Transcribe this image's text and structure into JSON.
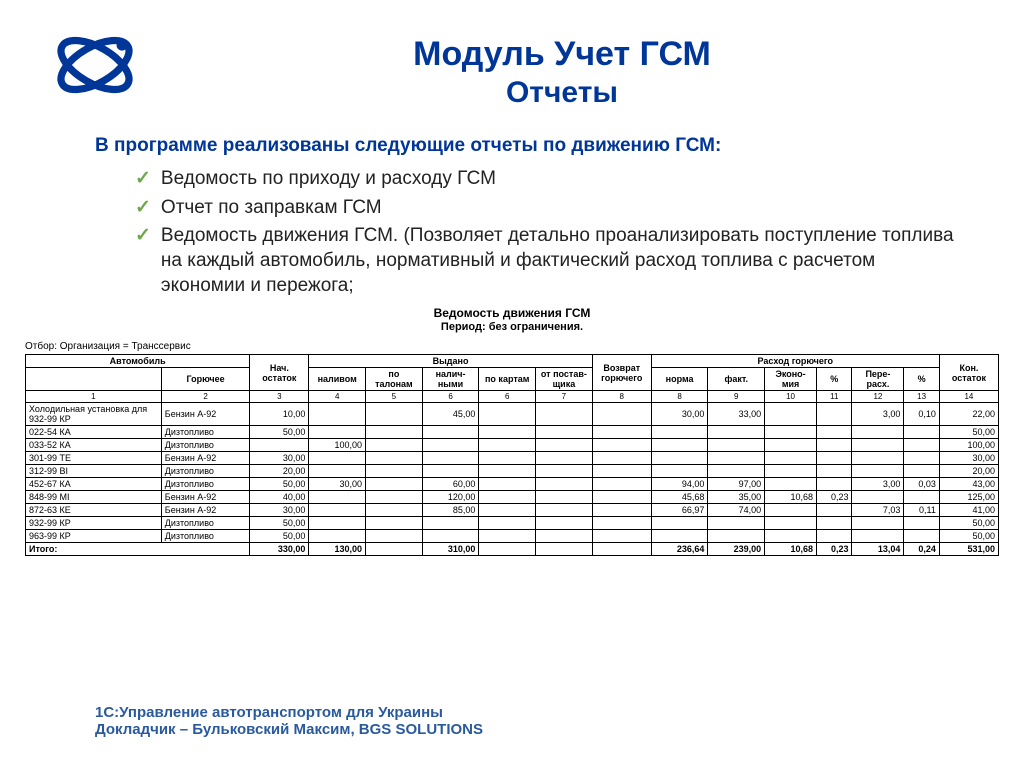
{
  "title_main": "Модуль Учет ГСМ",
  "title_sub": "Отчеты",
  "intro": "В программе реализованы следующие отчеты по движению ГСМ:",
  "bullets": [
    "Ведомость по приходу и расходу ГСМ",
    "Отчет по заправкам ГСМ",
    "Ведомость движения ГСМ. (Позволяет детально проанализировать поступление топлива на каждый автомобиль, нормативный и фактический расход топлива с расчетом экономии и пережога;"
  ],
  "report": {
    "title": "Ведомость движения ГСМ",
    "period": "Период: без ограничения.",
    "filter": "Отбор: Организация = Транссервис",
    "colnums": [
      "1",
      "2",
      "3",
      "4",
      "5",
      "6",
      "6",
      "7",
      "8",
      "8",
      "9",
      "10",
      "11",
      "12",
      "13",
      "14"
    ],
    "head": {
      "auto": "Автомобиль",
      "fuel": "Горючее",
      "start": "Нач. остаток",
      "issued": "Выдано",
      "nalivom": "наливом",
      "talon": "по талонам",
      "nalich": "налич-ными",
      "kartam": "по картам",
      "postav": "от постав-щика",
      "vozvrat": "Возврат горючего",
      "rashod": "Расход горючего",
      "norma": "норма",
      "fakt": "факт.",
      "ekono": "Эконо-мия",
      "pct1": "%",
      "pere": "Пере-расх.",
      "pct2": "%",
      "end": "Кон. остаток"
    },
    "rows": [
      {
        "auto": "Холодильная установка для 932-99 КР",
        "fuel": "Бензин А-92",
        "start": "10,00",
        "nalivom": "",
        "talon": "",
        "nalich": "45,00",
        "kartam": "",
        "postav": "",
        "vozvrat": "",
        "norma": "30,00",
        "fakt": "33,00",
        "ekono": "",
        "pct1": "",
        "pere": "3,00",
        "pct2": "0,10",
        "end": "22,00"
      },
      {
        "auto": "022-54 КА",
        "fuel": "Дизтопливо",
        "start": "50,00",
        "nalivom": "",
        "talon": "",
        "nalich": "",
        "kartam": "",
        "postav": "",
        "vozvrat": "",
        "norma": "",
        "fakt": "",
        "ekono": "",
        "pct1": "",
        "pere": "",
        "pct2": "",
        "end": "50,00"
      },
      {
        "auto": "033-52 КА",
        "fuel": "Дизтопливо",
        "start": "",
        "nalivom": "100,00",
        "talon": "",
        "nalich": "",
        "kartam": "",
        "postav": "",
        "vozvrat": "",
        "norma": "",
        "fakt": "",
        "ekono": "",
        "pct1": "",
        "pere": "",
        "pct2": "",
        "end": "100,00"
      },
      {
        "auto": "301-99 ТЕ",
        "fuel": "Бензин А-92",
        "start": "30,00",
        "nalivom": "",
        "talon": "",
        "nalich": "",
        "kartam": "",
        "postav": "",
        "vozvrat": "",
        "norma": "",
        "fakt": "",
        "ekono": "",
        "pct1": "",
        "pere": "",
        "pct2": "",
        "end": "30,00"
      },
      {
        "auto": "312-99 ВІ",
        "fuel": "Дизтопливо",
        "start": "20,00",
        "nalivom": "",
        "talon": "",
        "nalich": "",
        "kartam": "",
        "postav": "",
        "vozvrat": "",
        "norma": "",
        "fakt": "",
        "ekono": "",
        "pct1": "",
        "pere": "",
        "pct2": "",
        "end": "20,00"
      },
      {
        "auto": "452-67 КА",
        "fuel": "Дизтопливо",
        "start": "50,00",
        "nalivom": "30,00",
        "talon": "",
        "nalich": "60,00",
        "kartam": "",
        "postav": "",
        "vozvrat": "",
        "norma": "94,00",
        "fakt": "97,00",
        "ekono": "",
        "pct1": "",
        "pere": "3,00",
        "pct2": "0,03",
        "end": "43,00"
      },
      {
        "auto": "848-99 МІ",
        "fuel": "Бензин А-92",
        "start": "40,00",
        "nalivom": "",
        "talon": "",
        "nalich": "120,00",
        "kartam": "",
        "postav": "",
        "vozvrat": "",
        "norma": "45,68",
        "fakt": "35,00",
        "ekono": "10,68",
        "pct1": "0,23",
        "pere": "",
        "pct2": "",
        "end": "125,00"
      },
      {
        "auto": "872-63 КЕ",
        "fuel": "Бензин А-92",
        "start": "30,00",
        "nalivom": "",
        "talon": "",
        "nalich": "85,00",
        "kartam": "",
        "postav": "",
        "vozvrat": "",
        "norma": "66,97",
        "fakt": "74,00",
        "ekono": "",
        "pct1": "",
        "pere": "7,03",
        "pct2": "0,11",
        "end": "41,00"
      },
      {
        "auto": "932-99 КР",
        "fuel": "Дизтопливо",
        "start": "50,00",
        "nalivom": "",
        "talon": "",
        "nalich": "",
        "kartam": "",
        "postav": "",
        "vozvrat": "",
        "norma": "",
        "fakt": "",
        "ekono": "",
        "pct1": "",
        "pere": "",
        "pct2": "",
        "end": "50,00"
      },
      {
        "auto": "963-99 КР",
        "fuel": "Дизтопливо",
        "start": "50,00",
        "nalivom": "",
        "talon": "",
        "nalich": "",
        "kartam": "",
        "postav": "",
        "vozvrat": "",
        "norma": "",
        "fakt": "",
        "ekono": "",
        "pct1": "",
        "pere": "",
        "pct2": "",
        "end": "50,00"
      }
    ],
    "totals": {
      "label": "Итого:",
      "start": "330,00",
      "nalivom": "130,00",
      "talon": "",
      "nalich": "310,00",
      "kartam": "",
      "postav": "",
      "vozvrat": "",
      "norma": "236,64",
      "fakt": "239,00",
      "ekono": "10,68",
      "pct1": "0,23",
      "pere": "13,04",
      "pct2": "0,24",
      "end": "531,00"
    }
  },
  "footer1": "1С:Управление автотранспортом для Украины",
  "footer2": "Докладчик – Бульковский Максим, BGS SOLUTIONS",
  "colors": {
    "accent": "#003698",
    "check": "#6fa84a",
    "footer": "#2a5a9e"
  }
}
